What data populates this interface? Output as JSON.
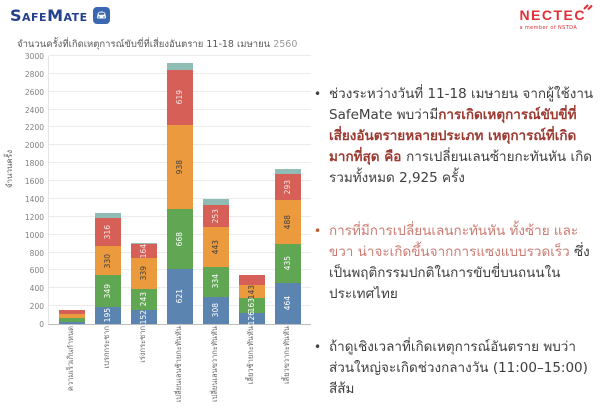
{
  "header": {
    "logo_text": "SafeMate",
    "nectec_text": "NECTEC",
    "nectec_subtext": "a member of NSTDA"
  },
  "colors": {
    "safemate_navy": "#24408e",
    "safemate_icon_blue": "#3a67b0",
    "nectec_red": "#e13036",
    "text_dark": "#3f3f3f",
    "text_bold_red": "#9c3a31",
    "text_light_red": "#cc7b72",
    "axis_gray": "#7f7f7f"
  },
  "chart_data": {
    "type": "bar",
    "stacked": true,
    "title": "จำนวนครั้งที่เกิดเหตุการณ์ขับขี่ที่เสี่ยงอันตราย 11-18 เมษายน",
    "title_year": "2560",
    "xlabel": "",
    "ylabel": "จำนวนครั้ง",
    "ylim": [
      0,
      3000
    ],
    "ytick_step": 200,
    "grid": true,
    "legend_position": "none",
    "categories": [
      "ความเร็วเกินกำหนด",
      "เบรกกระชาก",
      "เร่งกระชาก",
      "เปลี่ยนเลนซ้ายกะทันหัน",
      "เปลี่ยนเลนขวากะทันหัน",
      "เลี้ยวซ้ายกะทันหัน",
      "เลี้ยวขวากะทันหัน"
    ],
    "series": [
      {
        "name": "segment-blue",
        "color": "#5b84b0",
        "label_color": "#ffffff",
        "values": [
          18,
          195,
          152,
          621,
          308,
          126,
          464
        ],
        "labels": [
          "",
          "195",
          "152",
          "621",
          "308",
          "126",
          "464"
        ]
      },
      {
        "name": "segment-green",
        "color": "#60a653",
        "label_color": "#ffffff",
        "values": [
          45,
          349,
          243,
          668,
          334,
          163,
          435
        ],
        "labels": [
          "",
          "349",
          "243",
          "668",
          "334",
          "163",
          "435"
        ]
      },
      {
        "name": "segment-orange",
        "color": "#eb9a3d",
        "label_color": "#404040",
        "values": [
          50,
          330,
          339,
          938,
          443,
          143,
          488
        ],
        "labels": [
          "",
          "330",
          "339",
          "938",
          "443",
          "143",
          "488"
        ]
      },
      {
        "name": "segment-red",
        "color": "#d65f57",
        "label_color": "#f4e6e5",
        "values": [
          40,
          316,
          164,
          619,
          253,
          112,
          293
        ],
        "labels": [
          "",
          "316",
          "164",
          "619",
          "253",
          "",
          "293"
        ]
      },
      {
        "name": "segment-teal",
        "color": "#8fbcb4",
        "label_color": "#404040",
        "values": [
          0,
          50,
          14,
          79,
          57,
          0,
          60
        ],
        "labels": [
          "",
          "",
          "",
          "",
          "",
          "",
          ""
        ]
      }
    ],
    "totals": [
      153,
      1240,
      912,
      2925,
      1395,
      544,
      1740
    ],
    "highlight_total": "2,925"
  },
  "bullets": [
    {
      "marker_color": "#3f3f3f",
      "runs": [
        {
          "style": "normal",
          "text": "ช่วงระหว่างวันที่ 11-18 เมษายน จากผู้ใช้งาน SafeMate พบว่ามี"
        },
        {
          "style": "bold-red",
          "text": "การเกิดเหตุการณ์ขับขี่ที่เสี่ยงอันตรายหลายประเภท เหตุการณ์ที่เกิดมากที่สุด คือ "
        },
        {
          "style": "normal",
          "text": "การเปลี่ยนเลนซ้ายกะทันหัน เกิดรวมทั้งหมด 2,925 ครั้ง"
        }
      ]
    },
    {
      "marker_color": "#c4572e",
      "runs": [
        {
          "style": "light-red",
          "text": "การที่มีการเปลี่ยนเลนกะทันหัน ทั้งซ้าย และขวา น่าจะเกิดขึ้นจากการแซงแบบรวดเร็ว "
        },
        {
          "style": "normal",
          "text": "ซึ่งเป็นพฤติกรรมปกติในการขับขี่บนถนนในประเทศไทย"
        }
      ]
    },
    {
      "marker_color": "#3f3f3f",
      "runs": [
        {
          "style": "normal",
          "text": "ถ้าดูเชิงเวลาที่เกิดเหตุการณ์อันตราย พบว่าส่วนใหญ่จะเกิดช่วงกลางวัน (11:00–15:00) สีส้ม"
        }
      ]
    }
  ]
}
